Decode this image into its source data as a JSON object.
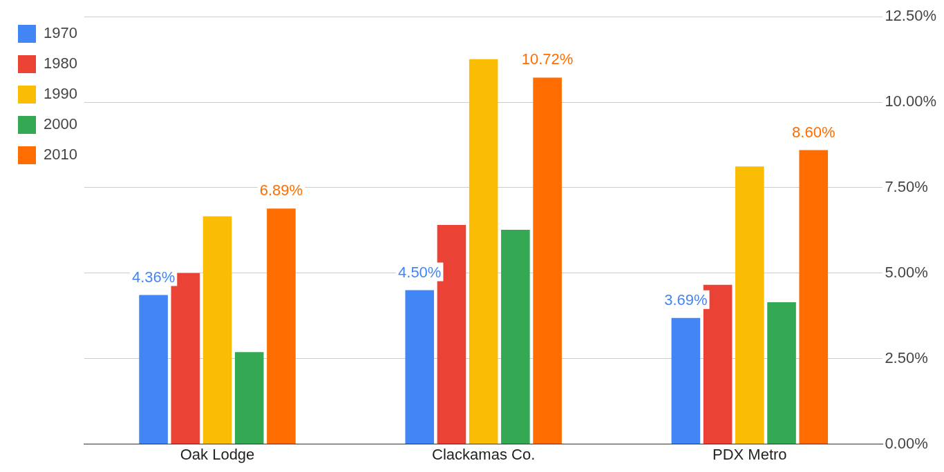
{
  "chart_data": {
    "type": "bar",
    "categories": [
      "Oak Lodge",
      "Clackamas Co.",
      "PDX Metro"
    ],
    "series": [
      {
        "name": "1970",
        "color": "#4285f4",
        "values": [
          4.36,
          4.5,
          3.69
        ],
        "value_labels": [
          "4.36%",
          "4.50%",
          "3.69%"
        ]
      },
      {
        "name": "1980",
        "color": "#ea4335",
        "values": [
          5.0,
          6.41,
          4.66
        ]
      },
      {
        "name": "1990",
        "color": "#fbbc04",
        "values": [
          6.66,
          11.26,
          8.12
        ]
      },
      {
        "name": "2000",
        "color": "#34a853",
        "values": [
          2.69,
          6.27,
          4.15
        ]
      },
      {
        "name": "2010",
        "color": "#ff6d01",
        "values": [
          6.89,
          10.72,
          8.6
        ],
        "value_labels": [
          "6.89%",
          "10.72%",
          "8.60%"
        ]
      }
    ],
    "ylim": [
      0,
      12.5
    ],
    "yticks": [
      {
        "value": 0,
        "label": "0.00%"
      },
      {
        "value": 2.5,
        "label": "2.50%"
      },
      {
        "value": 5,
        "label": "5.00%"
      },
      {
        "value": 7.5,
        "label": "7.50%"
      },
      {
        "value": 10,
        "label": "10.00%"
      },
      {
        "value": 12.5,
        "label": "12.50%"
      }
    ],
    "grid": "y",
    "legend": "left"
  }
}
